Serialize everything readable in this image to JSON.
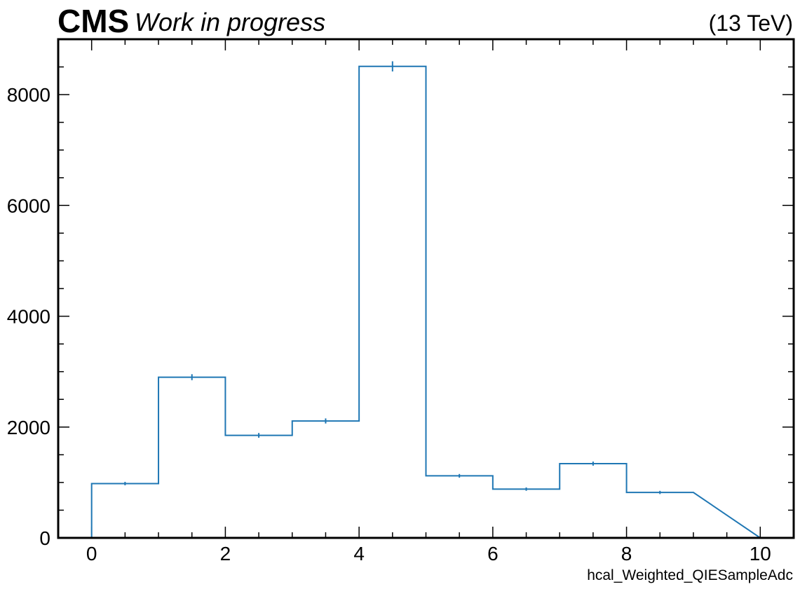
{
  "header": {
    "experiment": "CMS",
    "status": "Work in progress",
    "energy": "(13 TeV)"
  },
  "chart_data": {
    "type": "histogram",
    "xlabel": "hcal_Weighted_QIESampleAdc",
    "ylabel": "",
    "xlim": [
      -0.5,
      10.5
    ],
    "ylim": [
      0,
      9000
    ],
    "x_ticks": [
      0,
      2,
      4,
      6,
      8,
      10
    ],
    "y_ticks": [
      0,
      2000,
      4000,
      6000,
      8000
    ],
    "bin_edges": [
      0,
      1,
      2,
      3,
      4,
      5,
      6,
      7,
      8,
      9
    ],
    "values": [
      980,
      2900,
      1850,
      2110,
      8510,
      1120,
      880,
      1340,
      820
    ],
    "errors": [
      31,
      54,
      43,
      46,
      92,
      33,
      30,
      37,
      29
    ],
    "line_color": "#1f77b4",
    "grid": false,
    "style": "step"
  }
}
